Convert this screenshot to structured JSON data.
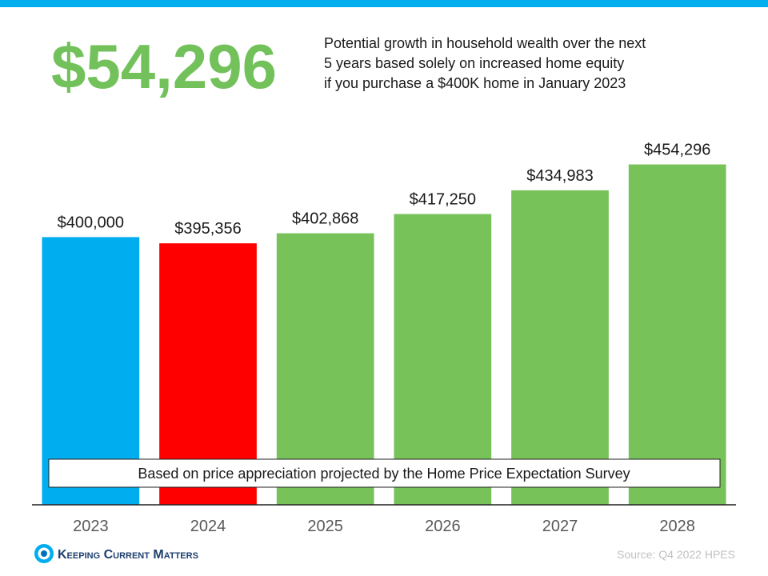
{
  "chart_data": {
    "type": "bar",
    "title": "$54,296",
    "subtitle": [
      "Potential growth in household wealth over the next",
      "5 years based solely on increased home equity",
      "if you purchase a $400K home in January 2023"
    ],
    "categories": [
      "2023",
      "2024",
      "2025",
      "2026",
      "2027",
      "2028"
    ],
    "values": [
      400000,
      395356,
      402868,
      417250,
      434983,
      454296
    ],
    "value_labels": [
      "$400,000",
      "$395,356",
      "$402,868",
      "$417,250",
      "$434,983",
      "$454,296"
    ],
    "colors": [
      "#00adef",
      "#ff0000",
      "#77c35a",
      "#77c35a",
      "#77c35a",
      "#77c35a"
    ],
    "ylim": [
      200000,
      460000
    ],
    "note": "Based on price appreciation projected by the Home Price Expectation Survey",
    "source": "Source: Q4 2022 HPES",
    "logo": "Keeping Current Matters"
  }
}
